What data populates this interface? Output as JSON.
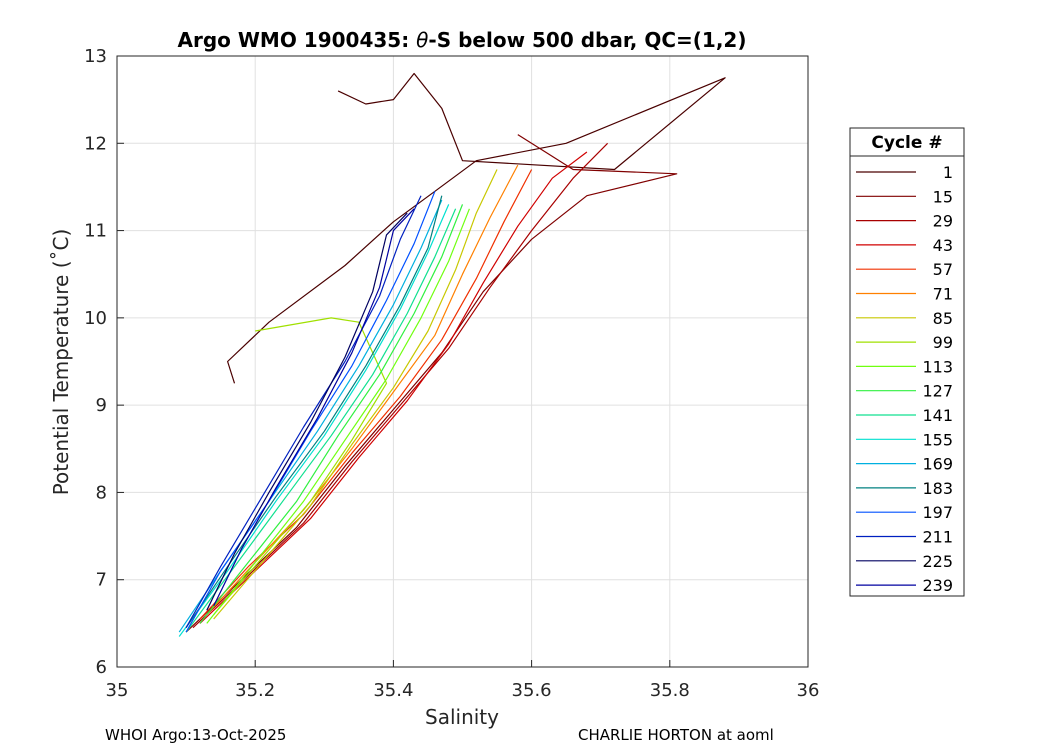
{
  "chart_data": {
    "type": "line",
    "title_prefix": "Argo WMO 1900435: ",
    "title_theta": "θ",
    "title_suffix": "-S below 500 dbar,  QC=(1,2)",
    "xlabel": "Salinity",
    "ylabel": "Potential Temperature (˚C)",
    "xlim": [
      35,
      36
    ],
    "ylim": [
      6,
      13
    ],
    "xticks": [
      35,
      35.2,
      35.4,
      35.6,
      35.8,
      36
    ],
    "xtick_labels": [
      "35",
      "35.2",
      "35.4",
      "35.6",
      "35.8",
      "36"
    ],
    "yticks": [
      6,
      7,
      8,
      9,
      10,
      11,
      12,
      13
    ],
    "ytick_labels": [
      "6",
      "7",
      "8",
      "9",
      "10",
      "11",
      "12",
      "13"
    ],
    "grid": true,
    "legend_title": "Cycle #",
    "legend_position": "right",
    "series": [
      {
        "name": "1",
        "color": "#4a0000",
        "x": [
          35.17,
          35.16,
          35.22,
          35.33,
          35.4,
          35.46,
          35.52,
          35.65,
          35.88,
          35.72,
          35.5,
          35.47,
          35.43,
          35.4,
          35.36,
          35.32
        ],
        "y": [
          9.25,
          9.5,
          9.95,
          10.6,
          11.1,
          11.45,
          11.8,
          12.0,
          12.75,
          11.7,
          11.8,
          12.4,
          12.8,
          12.5,
          12.45,
          12.6
        ]
      },
      {
        "name": "15",
        "color": "#800000",
        "x": [
          35.1,
          35.18,
          35.26,
          35.33,
          35.4,
          35.47,
          35.53,
          35.6,
          35.68,
          35.81,
          35.66,
          35.62,
          35.58
        ],
        "y": [
          6.4,
          7.0,
          7.6,
          8.3,
          8.95,
          9.6,
          10.3,
          10.9,
          11.4,
          11.65,
          11.7,
          11.9,
          12.1
        ]
      },
      {
        "name": "29",
        "color": "#a80000",
        "x": [
          35.11,
          35.19,
          35.27,
          35.34,
          35.41,
          35.48,
          35.54,
          35.6,
          35.66,
          35.71
        ],
        "y": [
          6.45,
          7.05,
          7.65,
          8.35,
          9.0,
          9.65,
          10.35,
          11.0,
          11.6,
          12.0
        ]
      },
      {
        "name": "43",
        "color": "#d00000",
        "x": [
          35.12,
          35.2,
          35.28,
          35.35,
          35.42,
          35.48,
          35.53,
          35.58,
          35.63,
          35.68
        ],
        "y": [
          6.5,
          7.1,
          7.7,
          8.4,
          9.05,
          9.7,
          10.4,
          11.05,
          11.6,
          11.9
        ]
      },
      {
        "name": "57",
        "color": "#f03000",
        "x": [
          35.12,
          35.19,
          35.27,
          35.34,
          35.41,
          35.47,
          35.52,
          35.56,
          35.6
        ],
        "y": [
          6.55,
          7.15,
          7.75,
          8.45,
          9.1,
          9.75,
          10.45,
          11.1,
          11.7
        ]
      },
      {
        "name": "71",
        "color": "#ff8000",
        "x": [
          35.13,
          35.2,
          35.27,
          35.34,
          35.4,
          35.46,
          35.5,
          35.54,
          35.58
        ],
        "y": [
          6.6,
          7.2,
          7.8,
          8.5,
          9.15,
          9.8,
          10.5,
          11.15,
          11.75
        ]
      },
      {
        "name": "85",
        "color": "#c8c800",
        "x": [
          35.14,
          35.21,
          35.28,
          35.34,
          35.4,
          35.45,
          35.49,
          35.52,
          35.55
        ],
        "y": [
          6.55,
          7.2,
          7.85,
          8.55,
          9.2,
          9.85,
          10.55,
          11.2,
          11.7
        ]
      },
      {
        "name": "99",
        "color": "#a0e000",
        "x": [
          35.14,
          35.21,
          35.28,
          35.34,
          35.39,
          35.35,
          35.31,
          35.2
        ],
        "y": [
          6.6,
          7.25,
          7.9,
          8.6,
          9.25,
          9.95,
          10.0,
          9.85
        ]
      },
      {
        "name": "113",
        "color": "#70ff10",
        "x": [
          35.13,
          35.2,
          35.27,
          35.33,
          35.39,
          35.44,
          35.48,
          35.51
        ],
        "y": [
          6.5,
          7.2,
          7.9,
          8.6,
          9.3,
          10.0,
          10.65,
          11.25
        ]
      },
      {
        "name": "127",
        "color": "#30f040",
        "x": [
          35.12,
          35.19,
          35.26,
          35.32,
          35.38,
          35.43,
          35.47,
          35.5
        ],
        "y": [
          6.5,
          7.2,
          7.9,
          8.65,
          9.35,
          10.05,
          10.7,
          11.3
        ]
      },
      {
        "name": "141",
        "color": "#10e090",
        "x": [
          35.1,
          35.17,
          35.24,
          35.31,
          35.37,
          35.42,
          35.46,
          35.49
        ],
        "y": [
          6.4,
          7.15,
          7.9,
          8.65,
          9.35,
          10.05,
          10.7,
          11.25
        ]
      },
      {
        "name": "155",
        "color": "#00e0d0",
        "x": [
          35.09,
          35.16,
          35.23,
          35.3,
          35.36,
          35.41,
          35.45,
          35.48
        ],
        "y": [
          6.35,
          7.1,
          7.9,
          8.65,
          9.4,
          10.1,
          10.75,
          11.3
        ]
      },
      {
        "name": "169",
        "color": "#00b0e0",
        "x": [
          35.09,
          35.15,
          35.22,
          35.29,
          35.35,
          35.4,
          35.44,
          35.47
        ],
        "y": [
          6.4,
          7.1,
          7.9,
          8.7,
          9.45,
          10.15,
          10.8,
          11.35
        ]
      },
      {
        "name": "183",
        "color": "#008080",
        "x": [
          35.1,
          35.16,
          35.23,
          35.3,
          35.36,
          35.41,
          35.45,
          35.47
        ],
        "y": [
          6.45,
          7.15,
          7.95,
          8.7,
          9.45,
          10.15,
          10.8,
          11.4
        ]
      },
      {
        "name": "197",
        "color": "#0050ff",
        "x": [
          35.1,
          35.15,
          35.22,
          35.28,
          35.34,
          35.39,
          35.43,
          35.46
        ],
        "y": [
          6.4,
          7.1,
          7.9,
          8.7,
          9.45,
          10.2,
          10.85,
          11.45
        ]
      },
      {
        "name": "211",
        "color": "#0020c0",
        "x": [
          35.1,
          35.15,
          35.21,
          35.27,
          35.33,
          35.38,
          35.41,
          35.44
        ],
        "y": [
          6.45,
          7.15,
          7.95,
          8.75,
          9.5,
          10.25,
          10.9,
          11.4
        ]
      },
      {
        "name": "225",
        "color": "#000060",
        "x": [
          35.13,
          35.17,
          35.22,
          35.28,
          35.33,
          35.37,
          35.39,
          35.42
        ],
        "y": [
          6.65,
          7.3,
          8.0,
          8.8,
          9.55,
          10.3,
          10.95,
          11.2
        ]
      },
      {
        "name": "239",
        "color": "#0000a0",
        "x": [
          35.14,
          35.18,
          35.23,
          35.29,
          35.34,
          35.38,
          35.4,
          35.43
        ],
        "y": [
          6.7,
          7.35,
          8.05,
          8.85,
          9.6,
          10.35,
          11.0,
          11.25
        ]
      }
    ]
  },
  "footer": {
    "left": "WHOI Argo:13-Oct-2025",
    "right": "CHARLIE HORTON at aoml"
  }
}
